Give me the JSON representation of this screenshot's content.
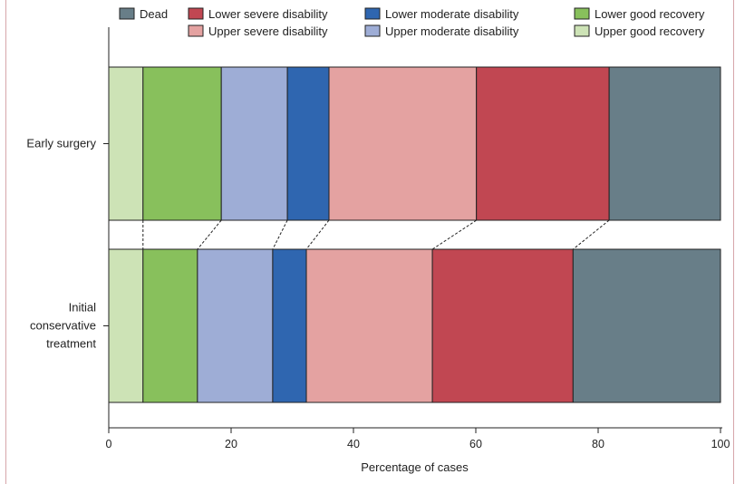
{
  "chart_data": {
    "type": "bar",
    "orientation": "horizontal",
    "stacked": true,
    "xlabel": "Percentage of cases",
    "xlim": [
      0,
      100
    ],
    "xticks": [
      "0",
      "20",
      "40",
      "60",
      "80",
      "100"
    ],
    "categories": [
      {
        "id": "early",
        "label_lines": [
          "Early surgery"
        ]
      },
      {
        "id": "conservative",
        "label_lines": [
          "Initial",
          "conservative",
          "treatment"
        ]
      }
    ],
    "series": [
      {
        "name": "Upper good recovery",
        "color": "#cde3b6",
        "values": [
          5.6,
          5.6
        ]
      },
      {
        "name": "Lower good recovery",
        "color": "#88c05c",
        "values": [
          12.8,
          8.9
        ]
      },
      {
        "name": "Upper moderate disability",
        "color": "#9eadd6",
        "values": [
          10.8,
          12.3
        ]
      },
      {
        "name": "Lower moderate disability",
        "color": "#2f66b0",
        "values": [
          6.8,
          5.5
        ]
      },
      {
        "name": "Upper severe disability",
        "color": "#e4a2a1",
        "values": [
          24.1,
          20.6
        ]
      },
      {
        "name": "Lower severe disability",
        "color": "#c14752",
        "values": [
          21.7,
          23.0
        ]
      },
      {
        "name": "Dead",
        "color": "#687e88",
        "values": [
          18.2,
          24.1
        ]
      }
    ],
    "legend": {
      "placement": "top",
      "rows": [
        [
          "Dead",
          "Lower severe disability",
          "Lower moderate disability",
          "Lower good recovery"
        ],
        [
          "",
          "Upper severe disability",
          "Upper moderate disability",
          "Upper good recovery"
        ]
      ]
    },
    "connector_lines": "dashed, linking segment boundaries between bars",
    "grid": false
  }
}
